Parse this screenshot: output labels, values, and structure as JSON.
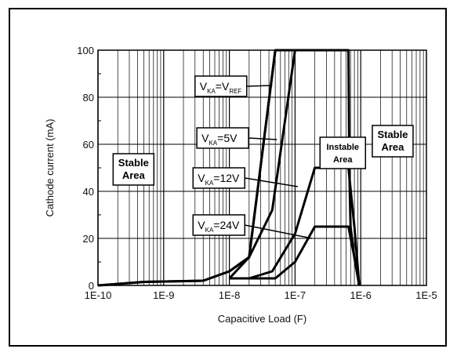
{
  "chart_data": {
    "type": "line",
    "title": "",
    "xlabel": "Capacitive Load (F)",
    "ylabel": "Cathode current (mA)",
    "x_scale": "log",
    "xlim": [
      1e-10,
      1e-05
    ],
    "ylim": [
      0,
      100
    ],
    "x_ticks": [
      1e-10,
      1e-09,
      1e-08,
      1e-07,
      1e-06,
      1e-05
    ],
    "x_tick_labels": [
      "1E-10",
      "1E-9",
      "1E-8",
      "1E-7",
      "1E-6",
      "1E-5"
    ],
    "y_ticks": [
      0,
      20,
      40,
      60,
      80,
      100
    ],
    "y_tick_labels": [
      "0",
      "20",
      "40",
      "60",
      "80",
      "100"
    ],
    "grid": true,
    "boundary": {
      "x": [
        1e-10,
        5e-10,
        4e-09,
        1e-08,
        2e-08,
        5e-08,
        1e-07,
        6.5e-07,
        6.7e-07,
        7e-07,
        8e-07,
        9.5e-07
      ],
      "y": [
        0,
        1.5,
        2,
        6,
        12,
        100,
        100,
        100,
        50,
        25,
        12,
        0
      ]
    },
    "series": [
      {
        "label_main": "V",
        "label_sub1": "KA",
        "label_mid": "=V",
        "label_sub2": "REF",
        "x": [
          1e-10,
          5e-10,
          4e-09,
          1e-08,
          2e-08,
          5e-08
        ],
        "y": [
          0,
          1.5,
          2,
          6,
          12,
          100
        ]
      },
      {
        "label_main": "V",
        "label_sub1": "KA",
        "label_mid": "=5V",
        "label_sub2": "",
        "x": [
          1e-08,
          2e-08,
          4.5e-08,
          1e-07
        ],
        "y": [
          3,
          12,
          32,
          100
        ]
      },
      {
        "label_main": "V",
        "label_sub1": "KA",
        "label_mid": "=12V",
        "label_sub2": "",
        "x": [
          1e-08,
          2e-08,
          4.5e-08,
          1e-07,
          2e-07,
          6.5e-07,
          8e-07,
          9.5e-07
        ],
        "y": [
          3,
          3,
          6,
          22,
          50,
          50,
          25,
          0
        ]
      },
      {
        "label_main": "V",
        "label_sub1": "KA",
        "label_mid": "=24V",
        "label_sub2": "",
        "x": [
          2e-08,
          5e-08,
          1e-07,
          2e-07,
          6.5e-07,
          8e-07,
          9.5e-07
        ],
        "y": [
          3,
          3,
          10,
          25,
          25,
          12,
          0
        ]
      }
    ],
    "area_labels": [
      {
        "lines": [
          "Stable",
          "Area"
        ],
        "x": 1.7e-10,
        "y": 56
      },
      {
        "lines": [
          "Instable",
          "Area"
        ],
        "x": 2.4e-07,
        "y": 63
      },
      {
        "lines": [
          "Stable",
          "Area"
        ],
        "x": 1.5e-06,
        "y": 68
      }
    ],
    "series_label_positions": [
      {
        "x": 3e-09,
        "y": 89,
        "arrow_to": [
          4.5e-08,
          85
        ]
      },
      {
        "x": 3.2e-09,
        "y": 67,
        "arrow_to": [
          5.3e-08,
          62
        ]
      },
      {
        "x": 2.8e-09,
        "y": 50,
        "arrow_to": [
          1.1e-07,
          42
        ]
      },
      {
        "x": 2.8e-09,
        "y": 30,
        "arrow_to": [
          1.8e-07,
          20
        ]
      }
    ]
  }
}
